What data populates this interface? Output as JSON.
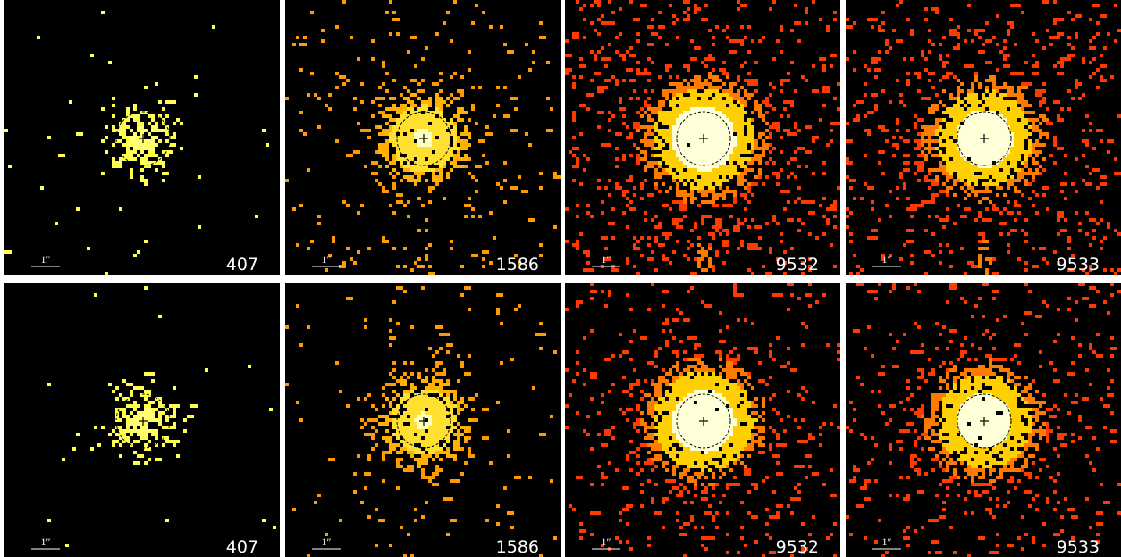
{
  "rows": [
    [
      {
        "scale": "1″",
        "label": "407"
      },
      {
        "scale": "1″",
        "label": "1586"
      },
      {
        "scale": "1″",
        "label": "9532"
      },
      {
        "scale": "1″",
        "label": "9533"
      }
    ],
    [
      {
        "scale": "1″",
        "label": "407"
      },
      {
        "scale": "1″",
        "label": "1586"
      },
      {
        "scale": "1″",
        "label": "9532"
      },
      {
        "scale": "1″",
        "label": "9533"
      }
    ]
  ]
}
